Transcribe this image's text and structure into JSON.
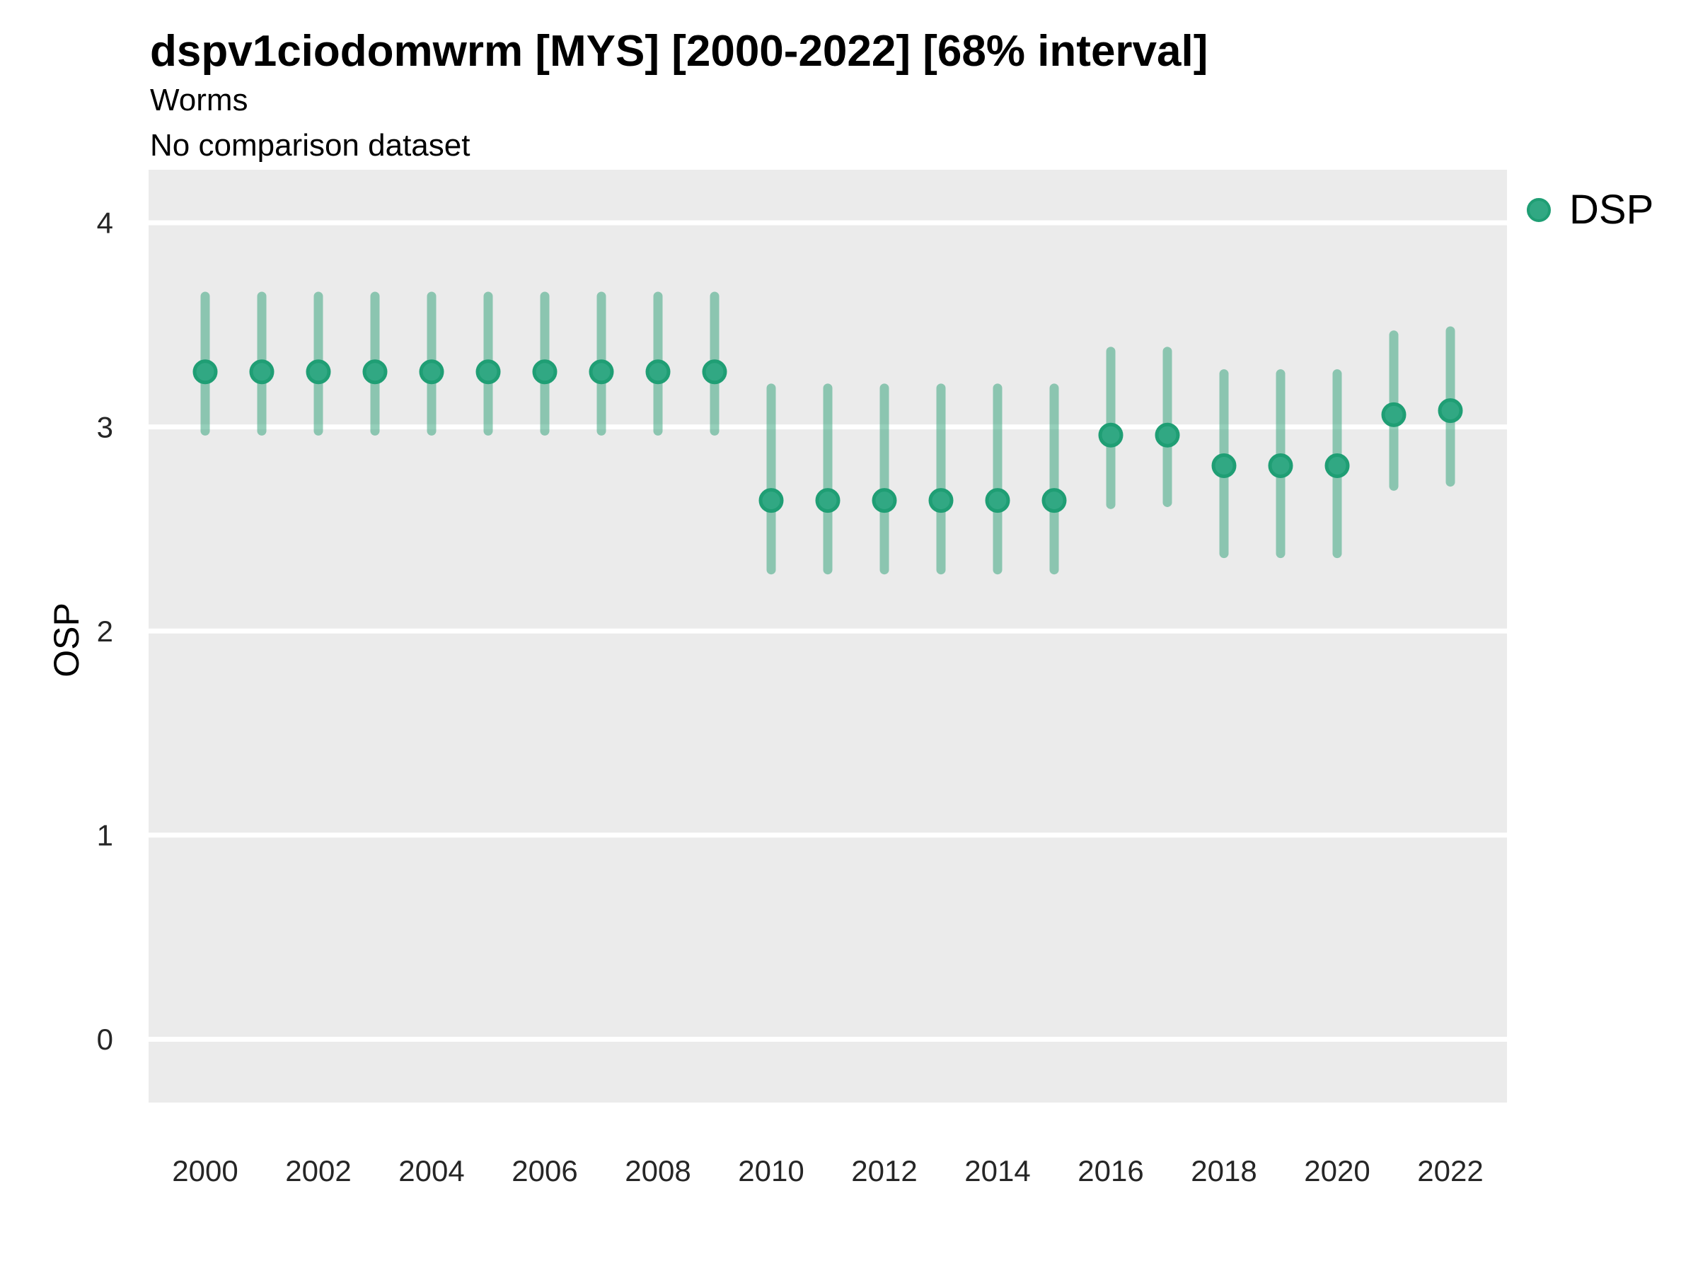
{
  "header": {
    "title": "dspv1ciodomwrm [MYS] [2000-2022] [68% interval]",
    "subtitle": "Worms",
    "comparison_note": "No comparison dataset"
  },
  "axes": {
    "y_label": "OSP"
  },
  "legend": {
    "label": "DSP",
    "position": "right-top"
  },
  "colors": {
    "point_fill": "#31A883",
    "point_stroke": "#1F9E74",
    "interval_bar": "rgba(44,160,118,0.5)",
    "panel_background": "#EBEBEB",
    "gridline": "#FFFFFF",
    "tick_text": "#262626"
  },
  "chart_data": {
    "type": "scatter",
    "title": "dspv1ciodomwrm [MYS] [2000-2022] [68% interval]",
    "subtitle": "Worms",
    "note": "No comparison dataset",
    "xlabel": "",
    "ylabel": "OSP",
    "interval_label": "68% interval",
    "legend_entries": [
      "DSP"
    ],
    "legend_position": "right-top",
    "grid": "horizontal-major-only",
    "xlim": [
      1999,
      2023
    ],
    "ylim": [
      -0.31,
      4.26
    ],
    "xticks": [
      2000,
      2002,
      2004,
      2006,
      2008,
      2010,
      2012,
      2014,
      2016,
      2018,
      2020,
      2022
    ],
    "yticks": [
      0,
      1,
      2,
      3,
      4
    ],
    "x": [
      2000,
      2001,
      2002,
      2003,
      2004,
      2005,
      2006,
      2007,
      2008,
      2009,
      2010,
      2011,
      2012,
      2013,
      2014,
      2015,
      2016,
      2017,
      2018,
      2019,
      2020,
      2021,
      2022
    ],
    "series": [
      {
        "name": "DSP",
        "values": [
          3.27,
          3.27,
          3.27,
          3.27,
          3.27,
          3.27,
          3.27,
          3.27,
          3.27,
          3.27,
          2.64,
          2.64,
          2.64,
          2.64,
          2.64,
          2.64,
          2.96,
          2.96,
          2.81,
          2.81,
          2.81,
          3.06,
          3.08
        ],
        "lower": [
          2.98,
          2.98,
          2.98,
          2.98,
          2.98,
          2.98,
          2.98,
          2.98,
          2.98,
          2.98,
          2.3,
          2.3,
          2.3,
          2.3,
          2.3,
          2.3,
          2.62,
          2.63,
          2.38,
          2.38,
          2.38,
          2.71,
          2.73
        ],
        "upper": [
          3.64,
          3.64,
          3.64,
          3.64,
          3.64,
          3.64,
          3.64,
          3.64,
          3.64,
          3.64,
          3.19,
          3.19,
          3.19,
          3.19,
          3.19,
          3.19,
          3.37,
          3.37,
          3.26,
          3.26,
          3.26,
          3.45,
          3.47
        ]
      }
    ]
  }
}
